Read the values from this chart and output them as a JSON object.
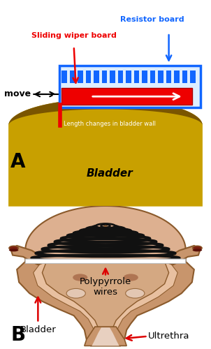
{
  "fig_width": 3.02,
  "fig_height": 5.0,
  "dpi": 100,
  "bg_color": "#ffffff",
  "panel_A": {
    "label": "A",
    "bladder_color": "#c8a000",
    "bladder_dark": "#7a5500",
    "bladder_dome_color": "#8b6500",
    "resistor_board_color": "#1166ff",
    "resistor_fill": "#ddeeff",
    "sliding_wiper_color": "#ee0000",
    "text_resistor": "Resistor board",
    "text_resistor_color": "#1166ff",
    "text_sliding": "Sliding wiper board",
    "text_sliding_color": "#ee0000",
    "text_move": "move",
    "text_length": "Length changes in bladder wall",
    "text_length_color": "#ffffff",
    "text_bladder": "Bladder",
    "text_bladder_color": "#000000",
    "label_fontsize": 20
  },
  "panel_B": {
    "label": "B",
    "skin_color": "#c8956c",
    "skin_light": "#ddb090",
    "skin_dark": "#8b5a2b",
    "skin_inner": "#e8c0a0",
    "skin_pale": "#e8d0c0",
    "ureter_red": "#7a2010",
    "wire_color": "#111111",
    "white_band": "#ffffff",
    "text_polypyrrole": "Polypyrrole\nwires",
    "text_bladder": "Bladder",
    "text_ultrethra": "Ultrethra",
    "arrow_color": "#dd0000",
    "text_color": "#000000",
    "label_fontsize": 20
  }
}
